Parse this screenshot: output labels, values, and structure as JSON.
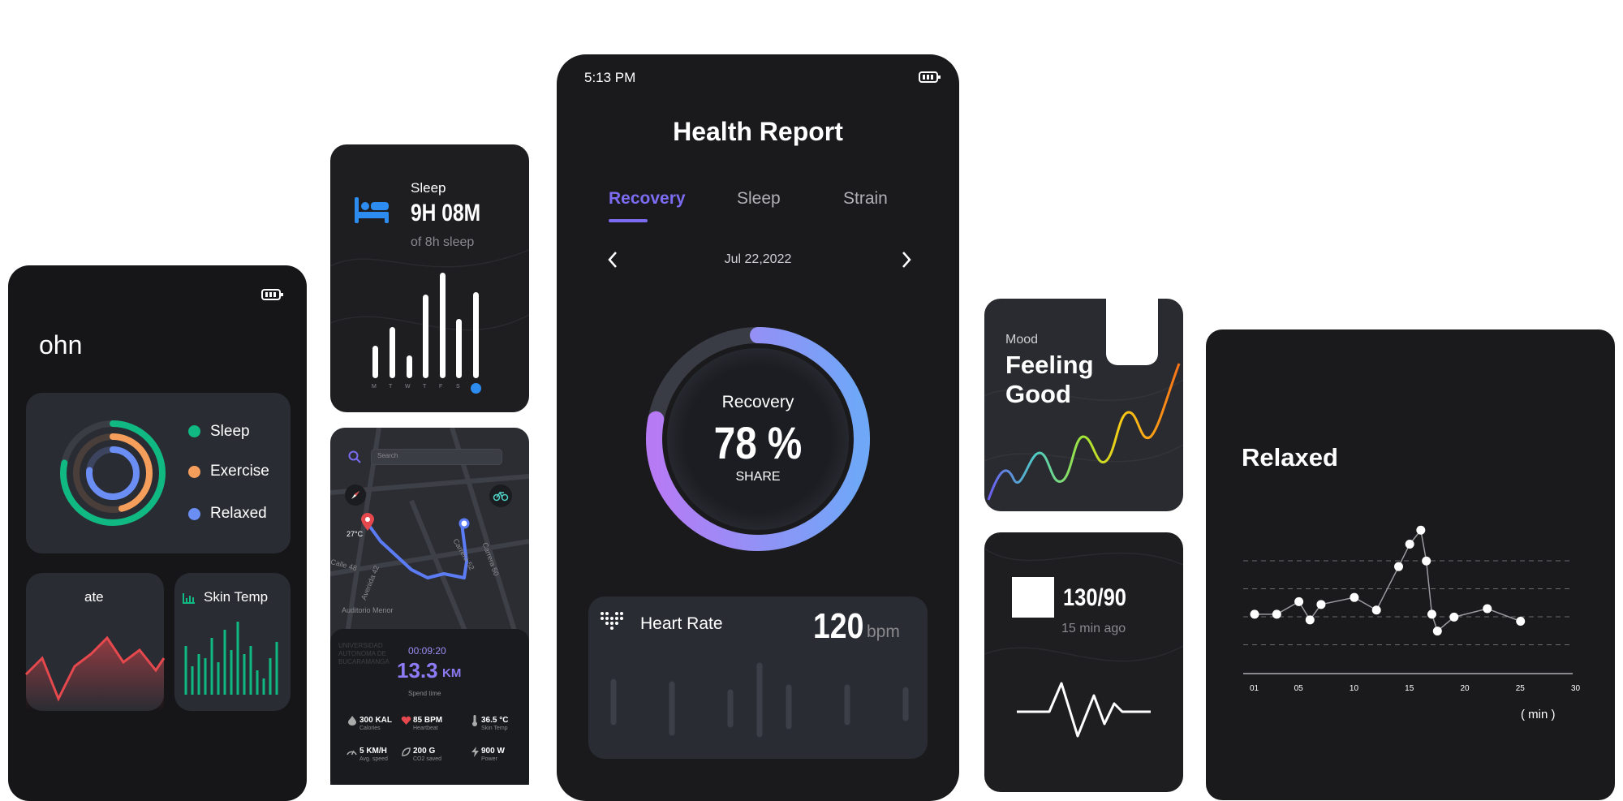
{
  "left_phone": {
    "user_name": "ohn",
    "legend": [
      {
        "label": "Sleep",
        "color": "#10b981"
      },
      {
        "label": "Exercise",
        "color": "#f59e5b"
      },
      {
        "label": "Relaxed",
        "color": "#6b8ef5"
      }
    ],
    "heart_rate_title": "ate",
    "skin_temp_title": "Skin Temp"
  },
  "sleep_card": {
    "label": "Sleep",
    "value": "9H 08M",
    "goal": "of 8h sleep",
    "days": [
      "M",
      "T",
      "W",
      "T",
      "F",
      "S",
      "S"
    ]
  },
  "map_card": {
    "search_placeholder": "Search",
    "temperature": "27°C",
    "streets": [
      "Carrera 50",
      "Avenida 42",
      "Calle 48",
      "Carrera 52",
      "Auditorio Menor"
    ],
    "place": "UNIVERSIDAD AUTONOMA DE BUCARAMANGA",
    "duration": "00:09:20",
    "distance": "13.3",
    "distance_unit": "KM",
    "duration_label": "Spend time",
    "stats": [
      {
        "value": "300 KAL",
        "label": "Calories"
      },
      {
        "value": "85 BPM",
        "label": "Heartbeat"
      },
      {
        "value": "36.5 °C",
        "label": "Skin Temp"
      },
      {
        "value": "5 KM/H",
        "label": "Avg. speed"
      },
      {
        "value": "200 G",
        "label": "CO2 saved"
      },
      {
        "value": "900 W",
        "label": "Power"
      }
    ]
  },
  "main_phone": {
    "status_time": "5:13 PM",
    "title": "Health Report",
    "tabs": [
      {
        "label": "Recovery",
        "active": true
      },
      {
        "label": "Sleep",
        "active": false
      },
      {
        "label": "Strain",
        "active": false
      }
    ],
    "date": "Jul 22,2022",
    "ring": {
      "label": "Recovery",
      "value": "78 %",
      "sublabel": "SHARE",
      "progress": 0.78
    },
    "heart_rate": {
      "label": "Heart Rate",
      "value": "120",
      "unit": "bpm"
    }
  },
  "mood_card": {
    "label": "Mood",
    "line1": "Feeling",
    "line2": "Good",
    "emoji": "😊"
  },
  "bp_card": {
    "value": "130/90",
    "time_ago": "15 min ago"
  },
  "relaxed_card": {
    "title": "Relaxed",
    "x_unit": "( min )",
    "chart_data": {
      "type": "line",
      "x_ticks": [
        "01",
        "05",
        "10",
        "15",
        "20",
        "25",
        "30"
      ],
      "points": [
        [
          1,
          2.0
        ],
        [
          3,
          2.0
        ],
        [
          5,
          2.45
        ],
        [
          6,
          1.8
        ],
        [
          7,
          2.35
        ],
        [
          10,
          2.6
        ],
        [
          12,
          2.15
        ],
        [
          14,
          3.7
        ],
        [
          15,
          4.5
        ],
        [
          16,
          5.0
        ],
        [
          16.5,
          3.9
        ],
        [
          17,
          2.0
        ],
        [
          17.5,
          1.4
        ],
        [
          19,
          1.9
        ],
        [
          22,
          2.2
        ],
        [
          25,
          1.75
        ]
      ],
      "ylim": [
        0,
        5.5
      ],
      "grid": "dashed horizontal"
    }
  }
}
